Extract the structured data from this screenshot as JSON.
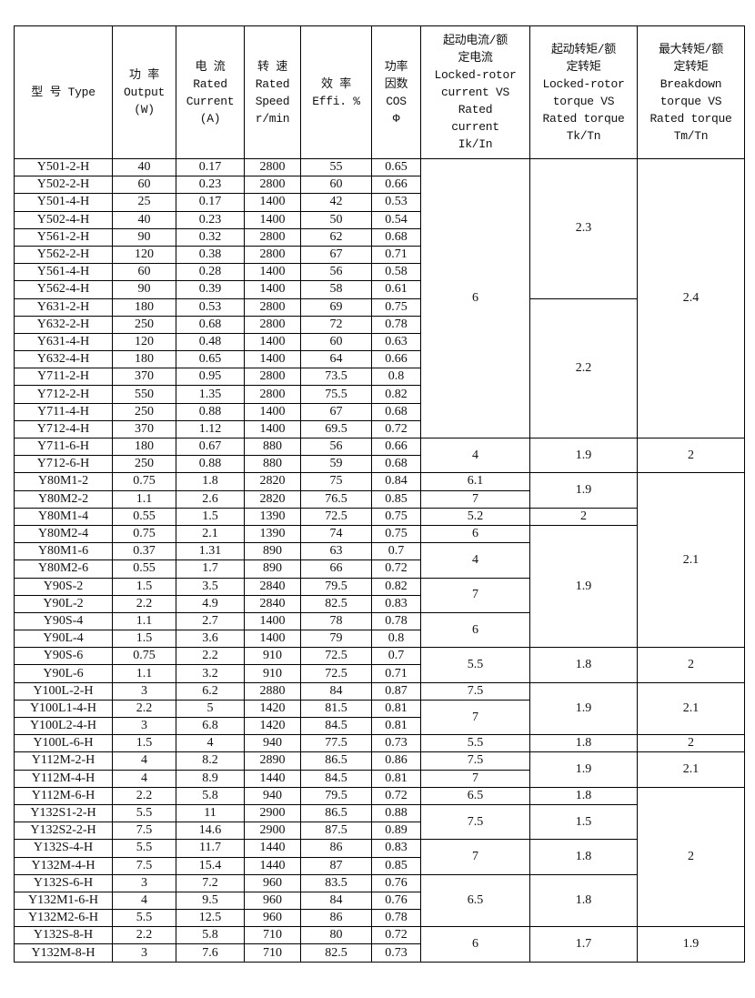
{
  "table": {
    "headers": [
      "型 号 Type",
      "功 率\nOutput\n(W)",
      "电 流\nRated\nCurrent\n(A)",
      "转 速\nRated\nSpeed\nr/min",
      "效 率\nEffi. %",
      "功率\n因数\nCOS\nΦ",
      "起动电流/额\n定电流\nLocked-rotor\ncurrent VS\nRated\ncurrent\nIk/In",
      "起动转矩/额\n定转矩\nLocked-rotor\ntorque VS\nRated torque\nTk/Tn",
      "最大转矩/额\n定转矩\nBreakdown\ntorque VS\nRated torque\nTm/Tn"
    ],
    "rows": [
      [
        "Y501-2-H",
        "40",
        "0.17",
        "2800",
        "55",
        "0.65",
        "6",
        "2.3",
        "2.4"
      ],
      [
        "Y502-2-H",
        "60",
        "0.23",
        "2800",
        "60",
        "0.66",
        null,
        null,
        null
      ],
      [
        "Y501-4-H",
        "25",
        "0.17",
        "1400",
        "42",
        "0.53",
        null,
        null,
        null
      ],
      [
        "Y502-4-H",
        "40",
        "0.23",
        "1400",
        "50",
        "0.54",
        null,
        null,
        null
      ],
      [
        "Y561-2-H",
        "90",
        "0.32",
        "2800",
        "62",
        "0.68",
        null,
        null,
        null
      ],
      [
        "Y562-2-H",
        "120",
        "0.38",
        "2800",
        "67",
        "0.71",
        null,
        null,
        null
      ],
      [
        "Y561-4-H",
        "60",
        "0.28",
        "1400",
        "56",
        "0.58",
        null,
        null,
        null
      ],
      [
        "Y562-4-H",
        "90",
        "0.39",
        "1400",
        "58",
        "0.61",
        null,
        null,
        null
      ],
      [
        "Y631-2-H",
        "180",
        "0.53",
        "2800",
        "69",
        "0.75",
        null,
        "2.2",
        null
      ],
      [
        "Y632-2-H",
        "250",
        "0.68",
        "2800",
        "72",
        "0.78",
        null,
        null,
        null
      ],
      [
        "Y631-4-H",
        "120",
        "0.48",
        "1400",
        "60",
        "0.63",
        null,
        null,
        null
      ],
      [
        "Y632-4-H",
        "180",
        "0.65",
        "1400",
        "64",
        "0.66",
        null,
        null,
        null
      ],
      [
        "Y711-2-H",
        "370",
        "0.95",
        "2800",
        "73.5",
        "0.8",
        null,
        null,
        null
      ],
      [
        "Y712-2-H",
        "550",
        "1.35",
        "2800",
        "75.5",
        "0.82",
        null,
        null,
        null
      ],
      [
        "Y711-4-H",
        "250",
        "0.88",
        "1400",
        "67",
        "0.68",
        null,
        null,
        null
      ],
      [
        "Y712-4-H",
        "370",
        "1.12",
        "1400",
        "69.5",
        "0.72",
        null,
        null,
        null
      ],
      [
        "Y711-6-H",
        "180",
        "0.67",
        "880",
        "56",
        "0.66",
        "4",
        "1.9",
        "2"
      ],
      [
        "Y712-6-H",
        "250",
        "0.88",
        "880",
        "59",
        "0.68",
        null,
        null,
        null
      ],
      [
        "Y80M1-2",
        "0.75",
        "1.8",
        "2820",
        "75",
        "0.84",
        "6.1",
        "1.9",
        "2.1"
      ],
      [
        "Y80M2-2",
        "1.1",
        "2.6",
        "2820",
        "76.5",
        "0.85",
        "7",
        null,
        null
      ],
      [
        "Y80M1-4",
        "0.55",
        "1.5",
        "1390",
        "72.5",
        "0.75",
        "5.2",
        "2",
        null
      ],
      [
        "Y80M2-4",
        "0.75",
        "2.1",
        "1390",
        "74",
        "0.75",
        "6",
        "1.9",
        null
      ],
      [
        "Y80M1-6",
        "0.37",
        "1.31",
        "890",
        "63",
        "0.7",
        "4",
        null,
        null
      ],
      [
        "Y80M2-6",
        "0.55",
        "1.7",
        "890",
        "66",
        "0.72",
        null,
        null,
        null
      ],
      [
        "Y90S-2",
        "1.5",
        "3.5",
        "2840",
        "79.5",
        "0.82",
        "7",
        null,
        null
      ],
      [
        "Y90L-2",
        "2.2",
        "4.9",
        "2840",
        "82.5",
        "0.83",
        null,
        null,
        null
      ],
      [
        "Y90S-4",
        "1.1",
        "2.7",
        "1400",
        "78",
        "0.78",
        "6",
        null,
        null
      ],
      [
        "Y90L-4",
        "1.5",
        "3.6",
        "1400",
        "79",
        "0.8",
        null,
        null,
        null
      ],
      [
        "Y90S-6",
        "0.75",
        "2.2",
        "910",
        "72.5",
        "0.7",
        "5.5",
        "1.8",
        "2"
      ],
      [
        "Y90L-6",
        "1.1",
        "3.2",
        "910",
        "72.5",
        "0.71",
        null,
        null,
        null
      ],
      [
        "Y100L-2-H",
        "3",
        "6.2",
        "2880",
        "84",
        "0.87",
        "7.5",
        "1.9",
        "2.1"
      ],
      [
        "Y100L1-4-H",
        "2.2",
        "5",
        "1420",
        "81.5",
        "0.81",
        "7",
        null,
        null
      ],
      [
        "Y100L2-4-H",
        "3",
        "6.8",
        "1420",
        "84.5",
        "0.81",
        null,
        null,
        null
      ],
      [
        "Y100L-6-H",
        "1.5",
        "4",
        "940",
        "77.5",
        "0.73",
        "5.5",
        "1.8",
        "2"
      ],
      [
        "Y112M-2-H",
        "4",
        "8.2",
        "2890",
        "86.5",
        "0.86",
        "7.5",
        "1.9",
        "2.1"
      ],
      [
        "Y112M-4-H",
        "4",
        "8.9",
        "1440",
        "84.5",
        "0.81",
        "7",
        null,
        null
      ],
      [
        "Y112M-6-H",
        "2.2",
        "5.8",
        "940",
        "79.5",
        "0.72",
        "6.5",
        "1.8",
        "2"
      ],
      [
        "Y132S1-2-H",
        "5.5",
        "11",
        "2900",
        "86.5",
        "0.88",
        "7.5",
        "1.5",
        null
      ],
      [
        "Y132S2-2-H",
        "7.5",
        "14.6",
        "2900",
        "87.5",
        "0.89",
        null,
        null,
        null
      ],
      [
        "Y132S-4-H",
        "5.5",
        "11.7",
        "1440",
        "86",
        "0.83",
        "7",
        "1.8",
        null
      ],
      [
        "Y132M-4-H",
        "7.5",
        "15.4",
        "1440",
        "87",
        "0.85",
        null,
        null,
        null
      ],
      [
        "Y132S-6-H",
        "3",
        "7.2",
        "960",
        "83.5",
        "0.76",
        "6.5",
        "1.8",
        null
      ],
      [
        "Y132M1-6-H",
        "4",
        "9.5",
        "960",
        "84",
        "0.76",
        null,
        null,
        null
      ],
      [
        "Y132M2-6-H",
        "5.5",
        "12.5",
        "960",
        "86",
        "0.78",
        null,
        null,
        null
      ],
      [
        "Y132S-8-H",
        "2.2",
        "5.8",
        "710",
        "80",
        "0.72",
        "6",
        "1.7",
        "1.9"
      ],
      [
        "Y132M-8-H",
        "3",
        "7.6",
        "710",
        "82.5",
        "0.73",
        null,
        null,
        null
      ]
    ]
  }
}
